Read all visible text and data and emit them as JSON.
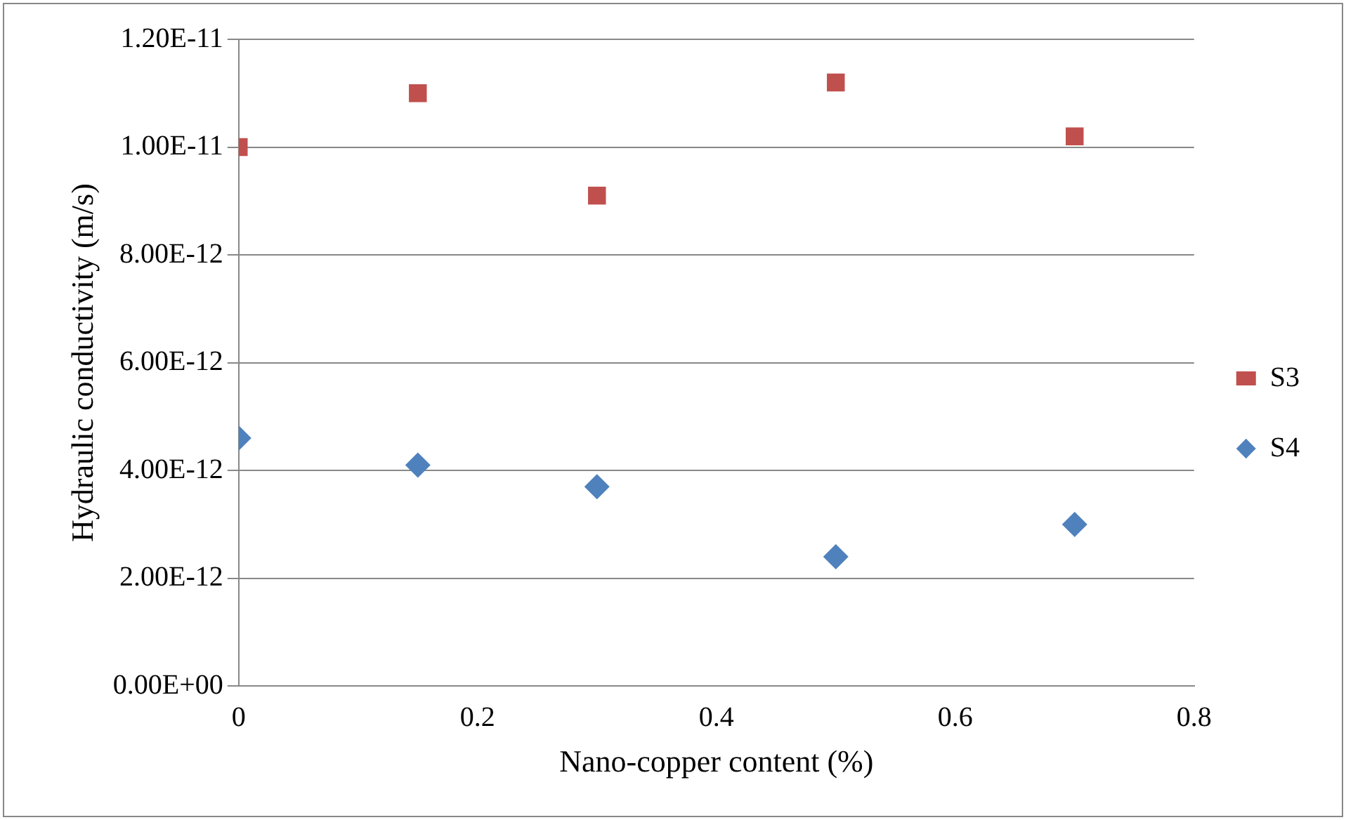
{
  "chart_data": {
    "type": "scatter",
    "xlabel": "Nano-copper content (%)",
    "ylabel": "Hydraulic conductivity (m/s)",
    "xlim": [
      0,
      0.8
    ],
    "xticks": [
      0,
      0.2,
      0.4,
      0.6,
      0.8
    ],
    "ylim": [
      0,
      1.2e-11
    ],
    "yticks": [
      {
        "value": 0,
        "label": "0.00E+00"
      },
      {
        "value": 2e-12,
        "label": "2.00E-12"
      },
      {
        "value": 4e-12,
        "label": "4.00E-12"
      },
      {
        "value": 6e-12,
        "label": "6.00E-12"
      },
      {
        "value": 8e-12,
        "label": "8.00E-12"
      },
      {
        "value": 1e-11,
        "label": "1.00E-11"
      },
      {
        "value": 1.2e-11,
        "label": "1.20E-11"
      }
    ],
    "grid": "y",
    "legend": "right",
    "series": [
      {
        "name": "S3",
        "color": "#c0504d",
        "marker": "square",
        "x": [
          0,
          0.15,
          0.3,
          0.5,
          0.7
        ],
        "values": [
          1e-11,
          1.1e-11,
          9.1e-12,
          1.12e-11,
          1.02e-11
        ]
      },
      {
        "name": "S4",
        "color": "#4f81bd",
        "marker": "diamond",
        "x": [
          0,
          0.15,
          0.3,
          0.5,
          0.7
        ],
        "values": [
          4.6e-12,
          4.1e-12,
          3.7e-12,
          2.4e-12,
          3e-12
        ]
      }
    ]
  }
}
